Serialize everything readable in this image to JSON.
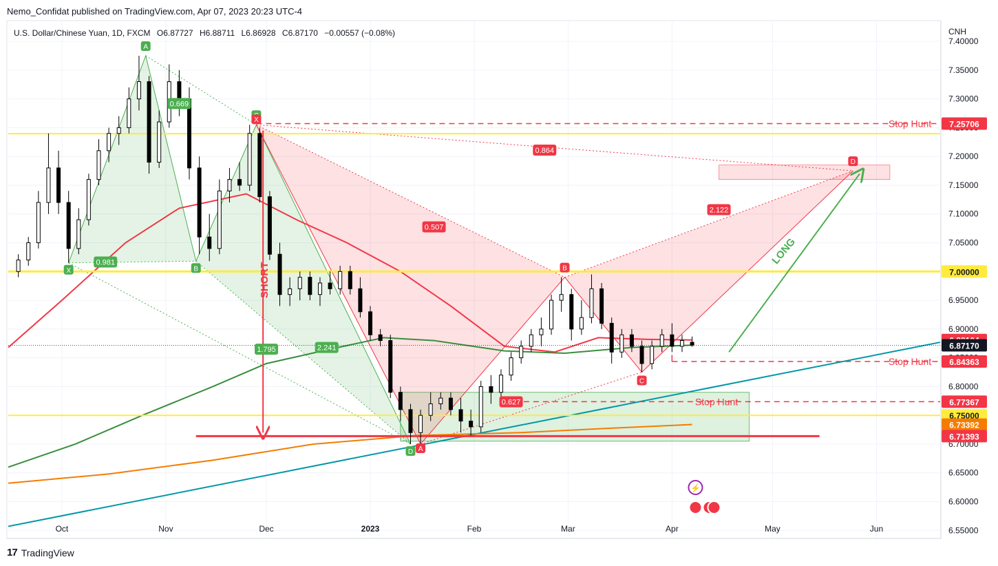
{
  "header": {
    "published_by": "Nemo_Confidat published on TradingView.com, Apr 07, 2023 20:23 UTC-4"
  },
  "legend": {
    "symbol": "U.S. Dollar/Chinese Yuan, 1D, FXCM",
    "o_label": "O",
    "o_value": "6.87727",
    "h_label": "H",
    "h_value": "6.88711",
    "l_label": "L",
    "l_value": "6.86928",
    "c_label": "C",
    "c_value": "6.87170",
    "change": "−0.00557 (−0.08%)"
  },
  "footer": {
    "brand": "TradingView"
  },
  "colors": {
    "up": "#ffffff",
    "down": "#000000",
    "ema_red": "#f23645",
    "ema_green": "#388e3c",
    "ema_orange": "#f57c00",
    "trend_teal": "#0097a7",
    "level_yellow": "#ffeb3b",
    "harmonic_green": "#4caf50",
    "harmonic_red": "#f23645"
  },
  "chart_data": {
    "type": "candlestick",
    "currency": "CNH",
    "y_ticks": [
      "7.40000",
      "7.35000",
      "7.30000",
      "7.25000",
      "7.20000",
      "7.15000",
      "7.10000",
      "7.05000",
      "7.00000",
      "6.95000",
      "6.90000",
      "6.85000",
      "6.80000",
      "6.75000",
      "6.70000",
      "6.65000",
      "6.60000",
      "6.55000"
    ],
    "y_range": [
      6.536,
      7.436
    ],
    "x_ticks": [
      "Oct",
      "Nov",
      "Dec",
      "2023",
      "Feb",
      "Mar",
      "Apr",
      "May",
      "Jun"
    ],
    "price_labels": [
      {
        "text": "7.25706",
        "value": 7.25706,
        "color": "#f23645"
      },
      {
        "text": "7.00000",
        "value": 7.0,
        "color": "#ffeb3b"
      },
      {
        "text": "6.88104",
        "value": 6.88104,
        "color": "#f23645"
      },
      {
        "text": "6.87170",
        "value": 6.8717,
        "color": "#131722"
      },
      {
        "text": "6.84363",
        "value": 6.84363,
        "color": "#f23645"
      },
      {
        "text": "6.77367",
        "value": 6.77367,
        "color": "#f23645"
      },
      {
        "text": "6.75000",
        "value": 6.75,
        "color": "#ffeb3b"
      },
      {
        "text": "6.73392",
        "value": 6.73392,
        "color": "#f57c00"
      },
      {
        "text": "6.71393",
        "value": 6.71393,
        "color": "#f23645"
      }
    ],
    "stop_hunt_label": "Stop Hunt",
    "short_label": "SHORT",
    "long_label": "LONG",
    "pattern1": {
      "points": [
        {
          "label": "X",
          "date": "2022-10-03",
          "value": 7.015
        },
        {
          "label": "A",
          "date": "2022-10-26",
          "value": 7.375
        },
        {
          "label": "B",
          "date": "2022-11-10",
          "value": 7.018
        },
        {
          "label": "C",
          "date": "2022-11-28",
          "value": 7.255
        },
        {
          "label": "D",
          "date": "2023-01-13",
          "value": 6.7
        }
      ],
      "ratios": [
        "0.669",
        "0.981",
        "1.795",
        "2.241"
      ]
    },
    "pattern2": {
      "points": [
        {
          "label": "X",
          "date": "2022-11-28",
          "value": 7.255
        },
        {
          "label": "A",
          "date": "2023-01-16",
          "value": 6.7
        },
        {
          "label": "B",
          "date": "2023-02-28",
          "value": 6.99
        },
        {
          "label": "C",
          "date": "2023-03-23",
          "value": 6.825
        },
        {
          "label": "D",
          "date": "2023-05-25",
          "value": 7.175
        }
      ],
      "ratios": [
        "0.864",
        "0.507",
        "2.122",
        "0.627"
      ]
    },
    "candles": [
      {
        "date": "2022-09-18",
        "o": 7.0,
        "h": 7.03,
        "l": 6.99,
        "c": 7.02
      },
      {
        "date": "2022-09-21",
        "o": 7.02,
        "h": 7.06,
        "l": 7.01,
        "c": 7.05
      },
      {
        "date": "2022-09-24",
        "o": 7.05,
        "h": 7.14,
        "l": 7.04,
        "c": 7.12
      },
      {
        "date": "2022-09-27",
        "o": 7.12,
        "h": 7.24,
        "l": 7.1,
        "c": 7.18
      },
      {
        "date": "2022-09-30",
        "o": 7.18,
        "h": 7.21,
        "l": 7.1,
        "c": 7.12
      },
      {
        "date": "2022-10-03",
        "o": 7.12,
        "h": 7.14,
        "l": 7.015,
        "c": 7.04
      },
      {
        "date": "2022-10-06",
        "o": 7.04,
        "h": 7.11,
        "l": 7.03,
        "c": 7.09
      },
      {
        "date": "2022-10-09",
        "o": 7.09,
        "h": 7.17,
        "l": 7.08,
        "c": 7.16
      },
      {
        "date": "2022-10-12",
        "o": 7.16,
        "h": 7.23,
        "l": 7.15,
        "c": 7.21
      },
      {
        "date": "2022-10-15",
        "o": 7.21,
        "h": 7.25,
        "l": 7.19,
        "c": 7.24
      },
      {
        "date": "2022-10-18",
        "o": 7.24,
        "h": 7.27,
        "l": 7.22,
        "c": 7.25
      },
      {
        "date": "2022-10-21",
        "o": 7.25,
        "h": 7.32,
        "l": 7.24,
        "c": 7.3
      },
      {
        "date": "2022-10-24",
        "o": 7.3,
        "h": 7.375,
        "l": 7.28,
        "c": 7.33
      },
      {
        "date": "2022-10-27",
        "o": 7.33,
        "h": 7.34,
        "l": 7.17,
        "c": 7.19
      },
      {
        "date": "2022-10-30",
        "o": 7.19,
        "h": 7.28,
        "l": 7.18,
        "c": 7.26
      },
      {
        "date": "2022-11-02",
        "o": 7.26,
        "h": 7.36,
        "l": 7.25,
        "c": 7.33
      },
      {
        "date": "2022-11-05",
        "o": 7.33,
        "h": 7.35,
        "l": 7.27,
        "c": 7.3
      },
      {
        "date": "2022-11-08",
        "o": 7.3,
        "h": 7.32,
        "l": 7.16,
        "c": 7.18
      },
      {
        "date": "2022-11-11",
        "o": 7.18,
        "h": 7.2,
        "l": 7.03,
        "c": 7.06
      },
      {
        "date": "2022-11-14",
        "o": 7.06,
        "h": 7.1,
        "l": 7.018,
        "c": 7.04
      },
      {
        "date": "2022-11-17",
        "o": 7.04,
        "h": 7.16,
        "l": 7.03,
        "c": 7.14
      },
      {
        "date": "2022-11-20",
        "o": 7.14,
        "h": 7.18,
        "l": 7.12,
        "c": 7.16
      },
      {
        "date": "2022-11-23",
        "o": 7.16,
        "h": 7.19,
        "l": 7.14,
        "c": 7.15
      },
      {
        "date": "2022-11-26",
        "o": 7.15,
        "h": 7.255,
        "l": 7.14,
        "c": 7.24
      },
      {
        "date": "2022-11-29",
        "o": 7.24,
        "h": 7.25,
        "l": 7.12,
        "c": 7.13
      },
      {
        "date": "2022-12-02",
        "o": 7.13,
        "h": 7.14,
        "l": 7.02,
        "c": 7.03
      },
      {
        "date": "2022-12-05",
        "o": 7.03,
        "h": 7.05,
        "l": 6.94,
        "c": 6.96
      },
      {
        "date": "2022-12-08",
        "o": 6.96,
        "h": 6.99,
        "l": 6.94,
        "c": 6.97
      },
      {
        "date": "2022-12-11",
        "o": 6.97,
        "h": 7.0,
        "l": 6.95,
        "c": 6.99
      },
      {
        "date": "2022-12-14",
        "o": 6.99,
        "h": 7.0,
        "l": 6.95,
        "c": 6.96
      },
      {
        "date": "2022-12-17",
        "o": 6.96,
        "h": 6.99,
        "l": 6.94,
        "c": 6.98
      },
      {
        "date": "2022-12-20",
        "o": 6.98,
        "h": 7.0,
        "l": 6.96,
        "c": 6.97
      },
      {
        "date": "2022-12-23",
        "o": 6.97,
        "h": 7.01,
        "l": 6.96,
        "c": 7.0
      },
      {
        "date": "2022-12-26",
        "o": 7.0,
        "h": 7.01,
        "l": 6.96,
        "c": 6.97
      },
      {
        "date": "2022-12-29",
        "o": 6.97,
        "h": 6.99,
        "l": 6.92,
        "c": 6.93
      },
      {
        "date": "2023-01-01",
        "o": 6.93,
        "h": 6.94,
        "l": 6.88,
        "c": 6.89
      },
      {
        "date": "2023-01-04",
        "o": 6.89,
        "h": 6.9,
        "l": 6.87,
        "c": 6.88
      },
      {
        "date": "2023-01-07",
        "o": 6.88,
        "h": 6.89,
        "l": 6.78,
        "c": 6.79
      },
      {
        "date": "2023-01-10",
        "o": 6.79,
        "h": 6.8,
        "l": 6.74,
        "c": 6.76
      },
      {
        "date": "2023-01-13",
        "o": 6.76,
        "h": 6.77,
        "l": 6.7,
        "c": 6.72
      },
      {
        "date": "2023-01-16",
        "o": 6.72,
        "h": 6.76,
        "l": 6.7,
        "c": 6.75
      },
      {
        "date": "2023-01-19",
        "o": 6.75,
        "h": 6.79,
        "l": 6.74,
        "c": 6.77
      },
      {
        "date": "2023-01-22",
        "o": 6.77,
        "h": 6.79,
        "l": 6.76,
        "c": 6.78
      },
      {
        "date": "2023-01-25",
        "o": 6.78,
        "h": 6.79,
        "l": 6.75,
        "c": 6.76
      },
      {
        "date": "2023-01-28",
        "o": 6.76,
        "h": 6.78,
        "l": 6.72,
        "c": 6.74
      },
      {
        "date": "2023-01-31",
        "o": 6.74,
        "h": 6.76,
        "l": 6.715,
        "c": 6.73
      },
      {
        "date": "2023-02-03",
        "o": 6.73,
        "h": 6.81,
        "l": 6.72,
        "c": 6.8
      },
      {
        "date": "2023-02-06",
        "o": 6.8,
        "h": 6.82,
        "l": 6.77,
        "c": 6.79
      },
      {
        "date": "2023-02-09",
        "o": 6.79,
        "h": 6.83,
        "l": 6.78,
        "c": 6.82
      },
      {
        "date": "2023-02-12",
        "o": 6.82,
        "h": 6.86,
        "l": 6.81,
        "c": 6.85
      },
      {
        "date": "2023-02-15",
        "o": 6.85,
        "h": 6.88,
        "l": 6.84,
        "c": 6.87
      },
      {
        "date": "2023-02-18",
        "o": 6.87,
        "h": 6.9,
        "l": 6.86,
        "c": 6.89
      },
      {
        "date": "2023-02-21",
        "o": 6.89,
        "h": 6.92,
        "l": 6.87,
        "c": 6.9
      },
      {
        "date": "2023-02-24",
        "o": 6.9,
        "h": 6.96,
        "l": 6.89,
        "c": 6.95
      },
      {
        "date": "2023-02-27",
        "o": 6.95,
        "h": 6.99,
        "l": 6.93,
        "c": 6.96
      },
      {
        "date": "2023-03-02",
        "o": 6.96,
        "h": 6.97,
        "l": 6.88,
        "c": 6.9
      },
      {
        "date": "2023-03-05",
        "o": 6.9,
        "h": 6.95,
        "l": 6.89,
        "c": 6.92
      },
      {
        "date": "2023-03-08",
        "o": 6.92,
        "h": 6.995,
        "l": 6.91,
        "c": 6.97
      },
      {
        "date": "2023-03-11",
        "o": 6.97,
        "h": 6.98,
        "l": 6.9,
        "c": 6.91
      },
      {
        "date": "2023-03-14",
        "o": 6.91,
        "h": 6.92,
        "l": 6.84,
        "c": 6.86
      },
      {
        "date": "2023-03-17",
        "o": 6.86,
        "h": 6.9,
        "l": 6.85,
        "c": 6.89
      },
      {
        "date": "2023-03-20",
        "o": 6.89,
        "h": 6.9,
        "l": 6.86,
        "c": 6.87
      },
      {
        "date": "2023-03-23",
        "o": 6.87,
        "h": 6.88,
        "l": 6.825,
        "c": 6.84
      },
      {
        "date": "2023-03-26",
        "o": 6.84,
        "h": 6.88,
        "l": 6.83,
        "c": 6.87
      },
      {
        "date": "2023-03-29",
        "o": 6.87,
        "h": 6.9,
        "l": 6.86,
        "c": 6.89
      },
      {
        "date": "2023-04-01",
        "o": 6.89,
        "h": 6.91,
        "l": 6.86,
        "c": 6.87
      },
      {
        "date": "2023-04-04",
        "o": 6.87,
        "h": 6.89,
        "l": 6.86,
        "c": 6.88
      },
      {
        "date": "2023-04-07",
        "o": 6.877,
        "h": 6.887,
        "l": 6.869,
        "c": 6.872
      }
    ]
  }
}
